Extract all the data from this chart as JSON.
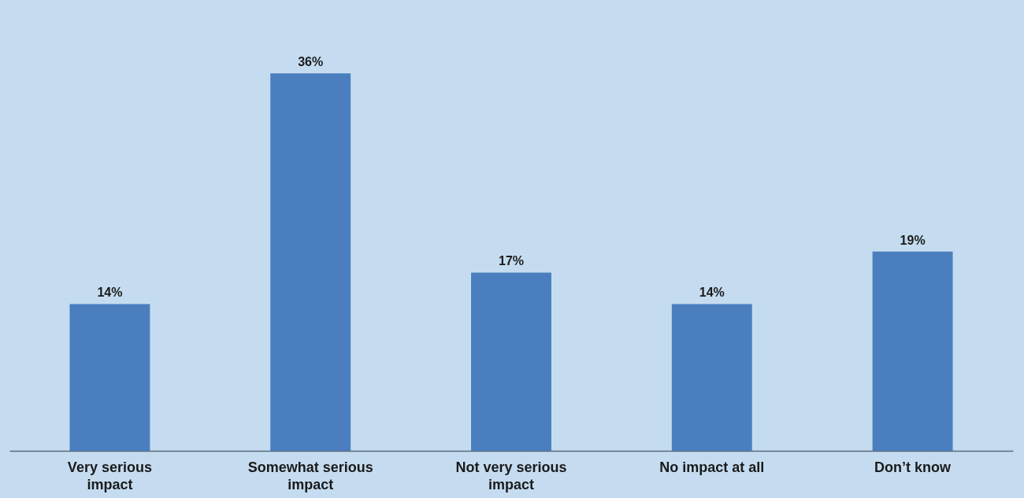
{
  "chart_data": {
    "type": "bar",
    "categories": [
      "Very serious impact",
      "Somewhat serious impact",
      "Not very serious impact",
      "No impact at all",
      "Don’t know"
    ],
    "values": [
      14,
      36,
      17,
      14,
      19
    ],
    "value_labels": [
      "14%",
      "36%",
      "17%",
      "14%",
      "19%"
    ],
    "color": "#4a7ebf"
  }
}
